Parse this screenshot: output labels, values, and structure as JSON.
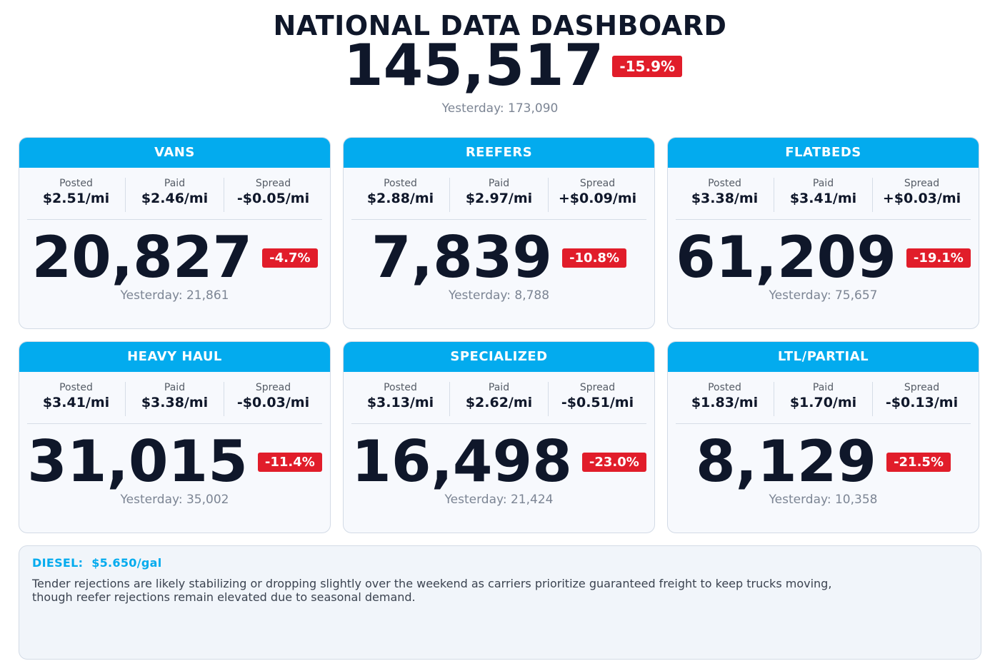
{
  "header": {
    "title": "NATIONAL DATA DASHBOARD",
    "total": "145,517",
    "change": "-15.9%",
    "yesterday": "Yesterday: 173,090"
  },
  "labels": {
    "posted": "Posted",
    "paid": "Paid",
    "spread": "Spread"
  },
  "cards": [
    {
      "name": "VANS",
      "posted": "$2.51/mi",
      "paid": "$2.46/mi",
      "spread": "-$0.05/mi",
      "value": "20,827",
      "change": "-4.7%",
      "yesterday": "Yesterday: 21,861"
    },
    {
      "name": "REEFERS",
      "posted": "$2.88/mi",
      "paid": "$2.97/mi",
      "spread": "+$0.09/mi",
      "value": "7,839",
      "change": "-10.8%",
      "yesterday": "Yesterday: 8,788"
    },
    {
      "name": "FLATBEDS",
      "posted": "$3.38/mi",
      "paid": "$3.41/mi",
      "spread": "+$0.03/mi",
      "value": "61,209",
      "change": "-19.1%",
      "yesterday": "Yesterday: 75,657"
    },
    {
      "name": "HEAVY HAUL",
      "posted": "$3.41/mi",
      "paid": "$3.38/mi",
      "spread": "-$0.03/mi",
      "value": "31,015",
      "change": "-11.4%",
      "yesterday": "Yesterday: 35,002"
    },
    {
      "name": "SPECIALIZED",
      "posted": "$3.13/mi",
      "paid": "$2.62/mi",
      "spread": "-$0.51/mi",
      "value": "16,498",
      "change": "-23.0%",
      "yesterday": "Yesterday: 21,424"
    },
    {
      "name": "LTL/PARTIAL",
      "posted": "$1.83/mi",
      "paid": "$1.70/mi",
      "spread": "-$0.13/mi",
      "value": "8,129",
      "change": "-21.5%",
      "yesterday": "Yesterday: 10,358"
    }
  ],
  "footer": {
    "diesel_label": "DIESEL:",
    "diesel_value": "$5.650/gal",
    "commentary": "Tender rejections are likely stabilizing or dropping slightly over the weekend as carriers prioritize guaranteed freight to keep trucks moving, though reefer rejections remain elevated due to seasonal demand."
  },
  "colors": {
    "accent": "#03abee",
    "negative_badge": "#e11d2a",
    "text_dark": "#0f172a"
  }
}
